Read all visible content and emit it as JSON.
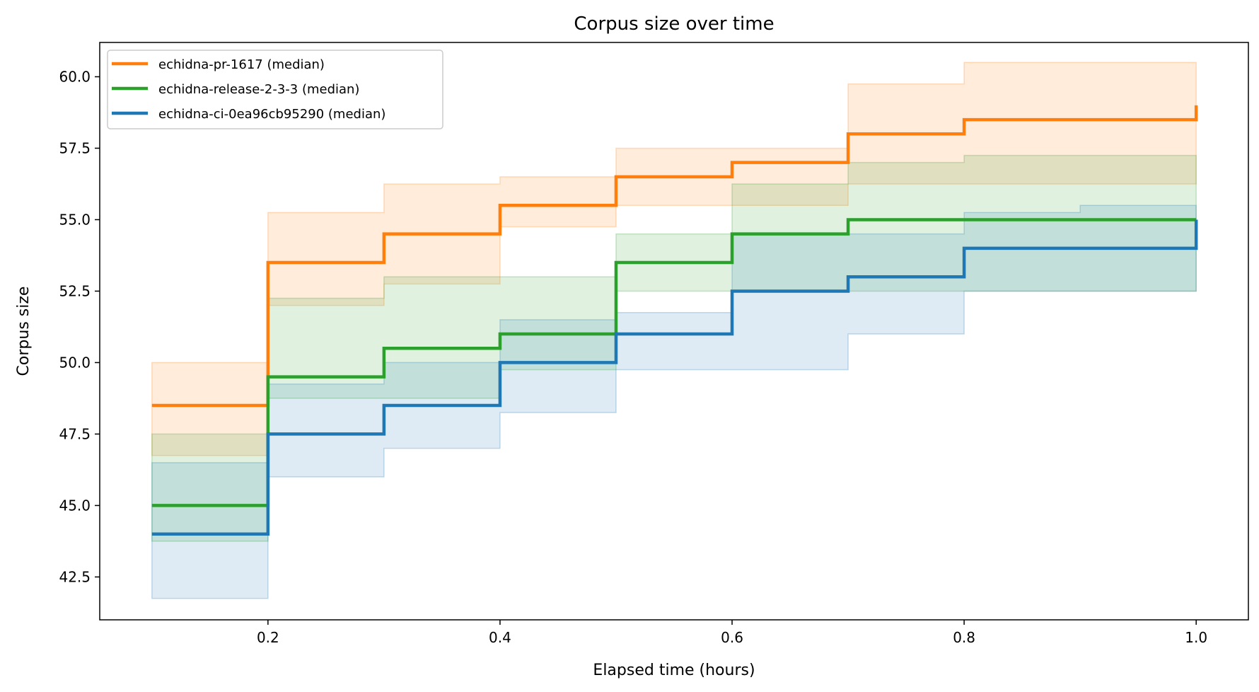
{
  "chart_data": {
    "type": "line",
    "step": "post",
    "title": "Corpus size over time",
    "xlabel": "Elapsed time (hours)",
    "ylabel": "Corpus size",
    "xlim": [
      0.055,
      1.045
    ],
    "ylim": [
      41.0,
      61.2
    ],
    "xticks": [
      0.2,
      0.4,
      0.6,
      0.8,
      1.0
    ],
    "xtick_labels": [
      "0.2",
      "0.4",
      "0.6",
      "0.8",
      "1.0"
    ],
    "yticks": [
      42.5,
      45.0,
      47.5,
      50.0,
      52.5,
      55.0,
      57.5,
      60.0
    ],
    "ytick_labels": [
      "42.5",
      "45.0",
      "47.5",
      "50.0",
      "52.5",
      "55.0",
      "57.5",
      "60.0"
    ],
    "grid": false,
    "legend_position": "top-left",
    "x": [
      0.1,
      0.2,
      0.3,
      0.4,
      0.5,
      0.6,
      0.7,
      0.8,
      0.9,
      1.0
    ],
    "series": [
      {
        "name": "echidna-pr-1617 (median)",
        "color": "#ff7f0e",
        "values": [
          48.5,
          53.5,
          54.5,
          55.5,
          56.5,
          57.0,
          58.0,
          58.5,
          58.5,
          59.0
        ],
        "lower": [
          46.75,
          52.0,
          52.75,
          54.75,
          55.5,
          55.5,
          56.25,
          56.25,
          56.25,
          56.25
        ],
        "upper": [
          50.0,
          55.25,
          56.25,
          56.5,
          57.5,
          57.5,
          59.75,
          60.5,
          60.5,
          60.5
        ]
      },
      {
        "name": "echidna-release-2-3-3 (median)",
        "color": "#2ca02c",
        "values": [
          45.0,
          49.5,
          50.5,
          51.0,
          53.5,
          54.5,
          55.0,
          55.0,
          55.0,
          55.0
        ],
        "lower": [
          43.75,
          48.75,
          48.75,
          49.75,
          52.5,
          52.5,
          52.5,
          52.5,
          52.5,
          52.5
        ],
        "upper": [
          47.5,
          52.25,
          53.0,
          53.0,
          54.5,
          56.25,
          57.0,
          57.25,
          57.25,
          55.75
        ]
      },
      {
        "name": "echidna-ci-0ea96cb95290 (median)",
        "color": "#1f77b4",
        "values": [
          44.0,
          47.5,
          48.5,
          50.0,
          51.0,
          52.5,
          53.0,
          54.0,
          54.0,
          55.0
        ],
        "lower": [
          41.75,
          46.0,
          47.0,
          48.25,
          49.75,
          49.75,
          51.0,
          52.5,
          52.5,
          52.5
        ],
        "upper": [
          46.5,
          49.25,
          50.0,
          51.5,
          51.75,
          54.5,
          54.5,
          55.25,
          55.5,
          55.5
        ]
      }
    ]
  }
}
